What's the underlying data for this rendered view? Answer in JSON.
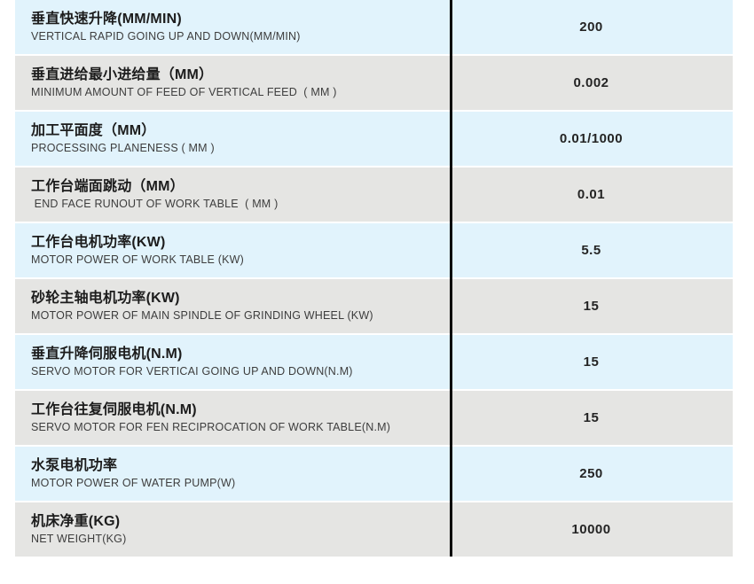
{
  "table": {
    "colors": {
      "row_blue": "#e1f3fc",
      "row_gray": "#e5e5e3",
      "divider": "#060606",
      "zh_text": "#1c1c1c",
      "en_text": "#3d3d3d",
      "value_text": "#242424"
    },
    "rows": [
      {
        "zh": "垂直快速升降(MM/MIN)",
        "en": "VERTICAL RAPID GOING UP AND DOWN(MM/MIN)",
        "value": "200"
      },
      {
        "zh": "垂直进给最小进给量（MM）",
        "en": "MINIMUM AMOUNT OF FEED OF VERTICAL FEED  ( MM )",
        "value": "0.002"
      },
      {
        "zh": "加工平面度（MM）",
        "en": "PROCESSING PLANENESS ( MM )",
        "value": "0.01/1000"
      },
      {
        "zh": "工作台端面跳动（MM）",
        "en": " END FACE RUNOUT OF WORK TABLE  ( MM )",
        "value": "0.01"
      },
      {
        "zh": "工作台电机功率(KW)",
        "en": "MOTOR POWER OF WORK TABLE (KW)",
        "value": "5.5"
      },
      {
        "zh": "砂轮主轴电机功率(KW)",
        "en": "MOTOR POWER OF MAIN SPINDLE OF GRINDING WHEEL (KW)",
        "value": "15"
      },
      {
        "zh": "垂直升降伺服电机(N.M)",
        "en": "SERVO MOTOR FOR VERTICAI GOING UP AND DOWN(N.M)",
        "value": "15"
      },
      {
        "zh": "工作台往复伺服电机(N.M)",
        "en": "SERVO MOTOR FOR FEN RECIPROCATION OF WORK TABLE(N.M)",
        "value": "15"
      },
      {
        "zh": "水泵电机功率",
        "en": "MOTOR POWER OF WATER PUMP(W)",
        "value": "250"
      },
      {
        "zh": "机床净重(KG)",
        "en": "NET WEIGHT(KG)",
        "value": "10000"
      }
    ]
  }
}
